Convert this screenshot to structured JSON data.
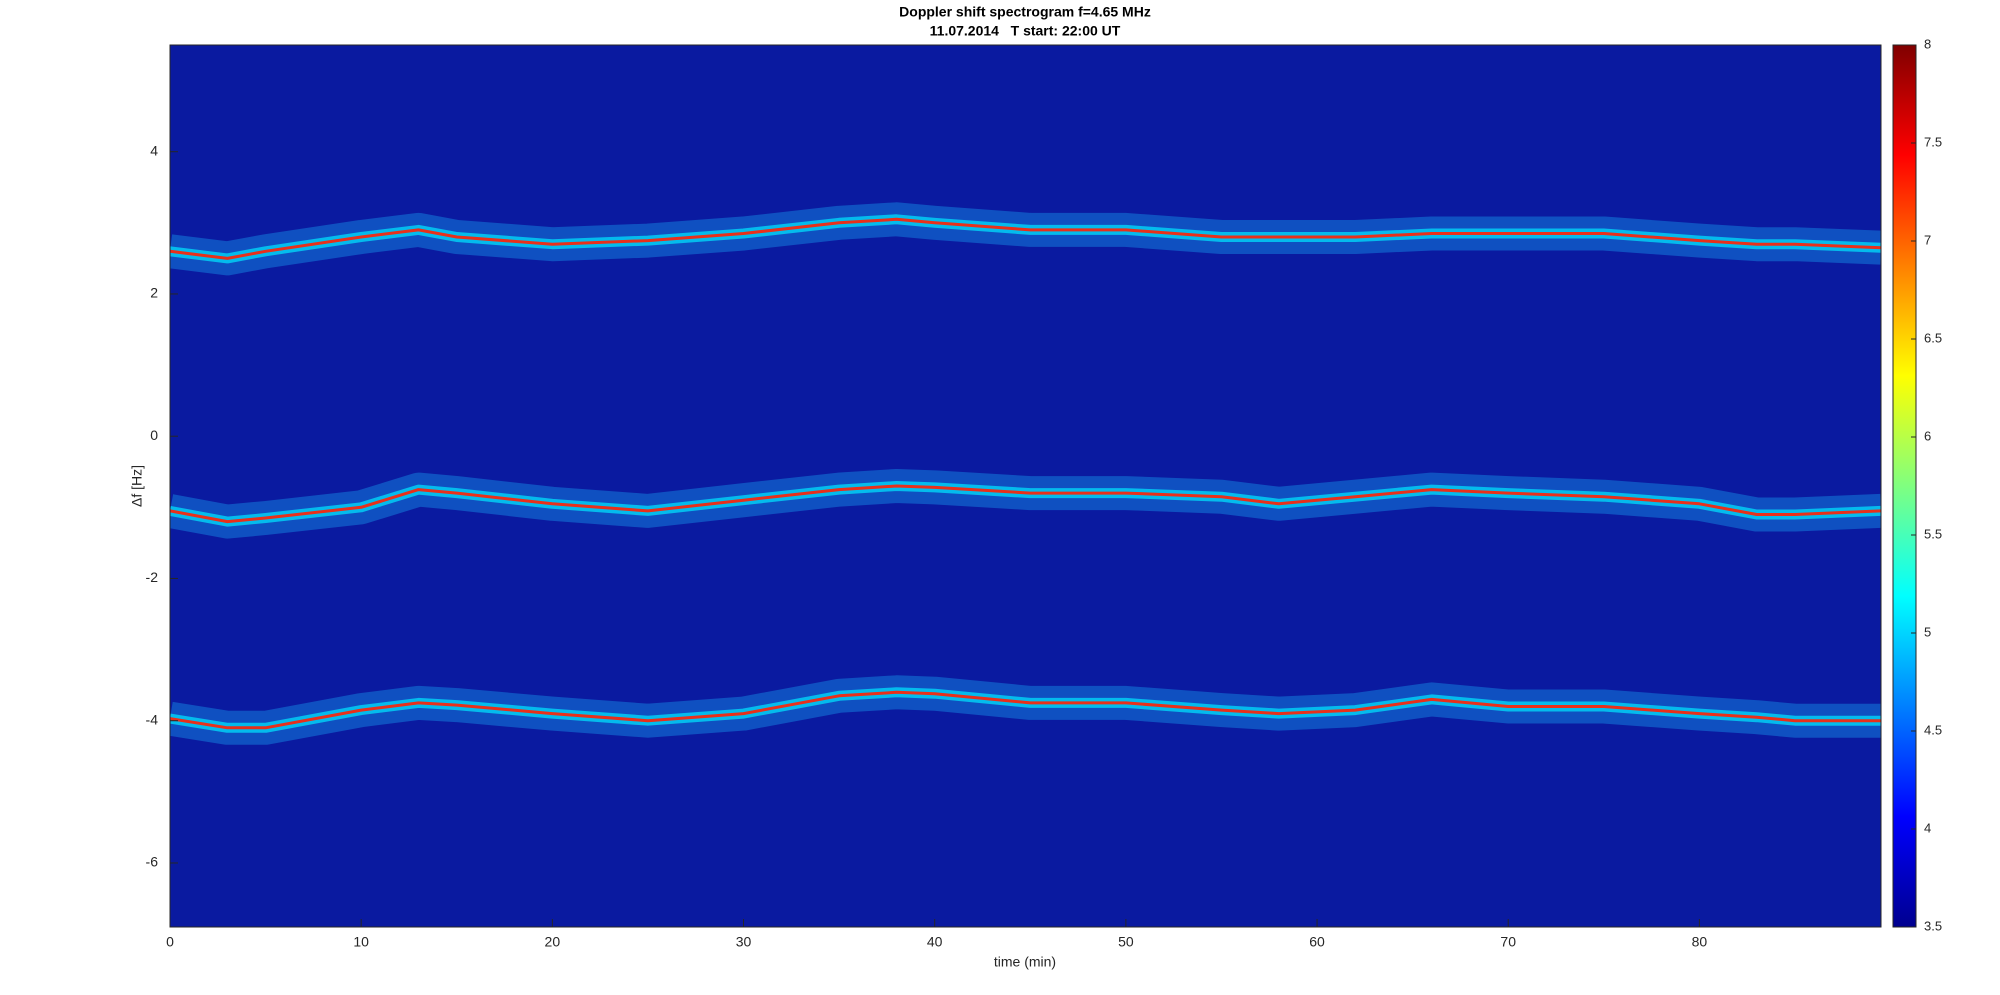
{
  "chart_data": {
    "type": "line",
    "title": "Doppler shift spectrogram f=4.65 MHz",
    "subtitle": "11.07.2014   T start: 22:00 UT",
    "x_label": "time (min)",
    "y_label": "Δf [Hz]",
    "x": [
      0,
      3,
      5,
      10,
      13,
      15,
      20,
      25,
      30,
      35,
      38,
      40,
      45,
      50,
      55,
      58,
      62,
      66,
      70,
      75,
      80,
      83,
      85,
      89.5
    ],
    "series": [
      {
        "color": "#e8301a",
        "values": [
          2.6,
          2.5,
          2.6,
          2.8,
          2.9,
          2.8,
          2.7,
          2.75,
          2.85,
          3.0,
          3.05,
          3.0,
          2.9,
          2.9,
          2.8,
          2.8,
          2.8,
          2.85,
          2.85,
          2.85,
          2.75,
          2.7,
          2.7,
          2.65
        ]
      },
      {
        "color": "#e8301a",
        "values": [
          -1.05,
          -1.2,
          -1.15,
          -1.0,
          -0.75,
          -0.8,
          -0.95,
          -1.05,
          -0.9,
          -0.75,
          -0.7,
          -0.72,
          -0.8,
          -0.8,
          -0.85,
          -0.95,
          -0.85,
          -0.75,
          -0.8,
          -0.85,
          -0.95,
          -1.1,
          -1.1,
          -1.05
        ]
      },
      {
        "color": "#e8301a",
        "values": [
          -3.97,
          -4.1,
          -4.1,
          -3.85,
          -3.75,
          -3.78,
          -3.9,
          -4.0,
          -3.9,
          -3.65,
          -3.6,
          -3.62,
          -3.75,
          -3.75,
          -3.85,
          -3.9,
          -3.85,
          -3.7,
          -3.8,
          -3.8,
          -3.9,
          -3.95,
          -4.0,
          -4.0
        ]
      }
    ],
    "xlim": [
      0,
      89.5
    ],
    "xticks": [
      0,
      10,
      20,
      30,
      40,
      50,
      60,
      70,
      80
    ],
    "ylim": [
      -6.9,
      5.5
    ],
    "yticks": [
      -6,
      -4,
      -2,
      0,
      2,
      4
    ],
    "clim": [
      3.5,
      8
    ],
    "cticks": [
      3.5,
      4,
      4.5,
      5,
      5.5,
      6,
      6.5,
      7,
      7.5,
      8
    ],
    "background_color": "#0a1aa0"
  }
}
